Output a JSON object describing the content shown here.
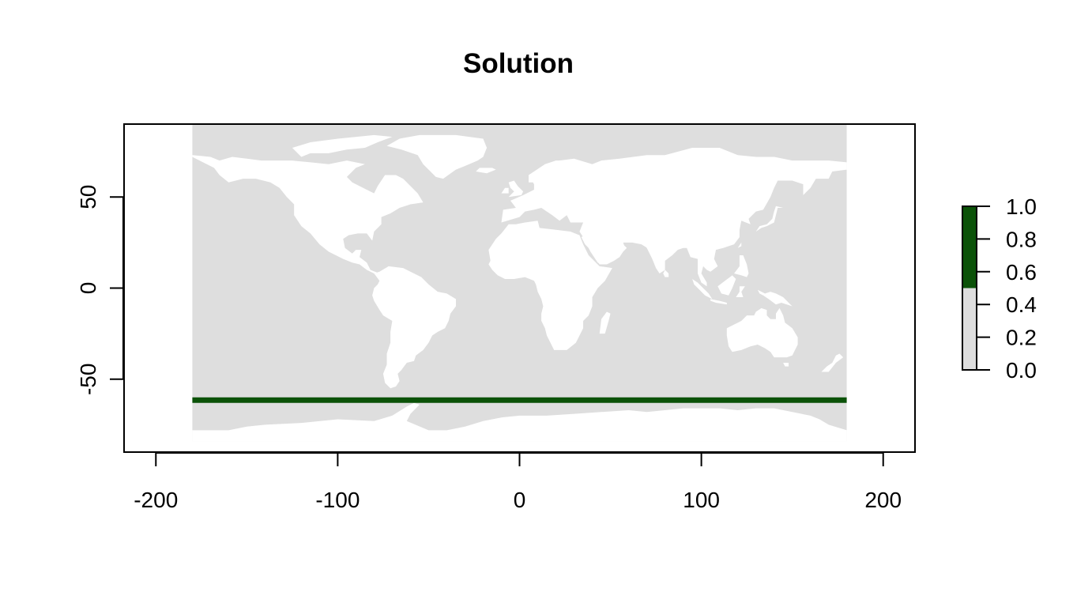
{
  "title": "Solution",
  "chart_data": {
    "type": "heatmap",
    "title": "Solution",
    "xlabel": "",
    "ylabel": "",
    "xlim": [
      -217.5,
      217.5
    ],
    "ylim": [
      -90,
      90
    ],
    "xticks": [
      -200,
      -100,
      0,
      100,
      200
    ],
    "yticks": [
      -50,
      0,
      50
    ],
    "raster_extent": {
      "x": [
        -180,
        180
      ],
      "y": [
        -84,
        90
      ]
    },
    "selected_band": {
      "lat": -61.5,
      "lon": [
        -180,
        180
      ],
      "value": 1
    },
    "colors": {
      "unselected": "#dedede",
      "selected": "#0b5208",
      "land": "#ffffff"
    },
    "legend": {
      "placement": "right",
      "breaks": [
        0,
        0.5,
        1
      ],
      "colors": [
        "#dedede",
        "#0b5208"
      ],
      "ticks": [
        0.0,
        0.2,
        0.4,
        0.6,
        0.8,
        1.0
      ],
      "tick_labels": [
        "0.0",
        "0.2",
        "0.4",
        "0.6",
        "0.8",
        "1.0"
      ]
    }
  }
}
